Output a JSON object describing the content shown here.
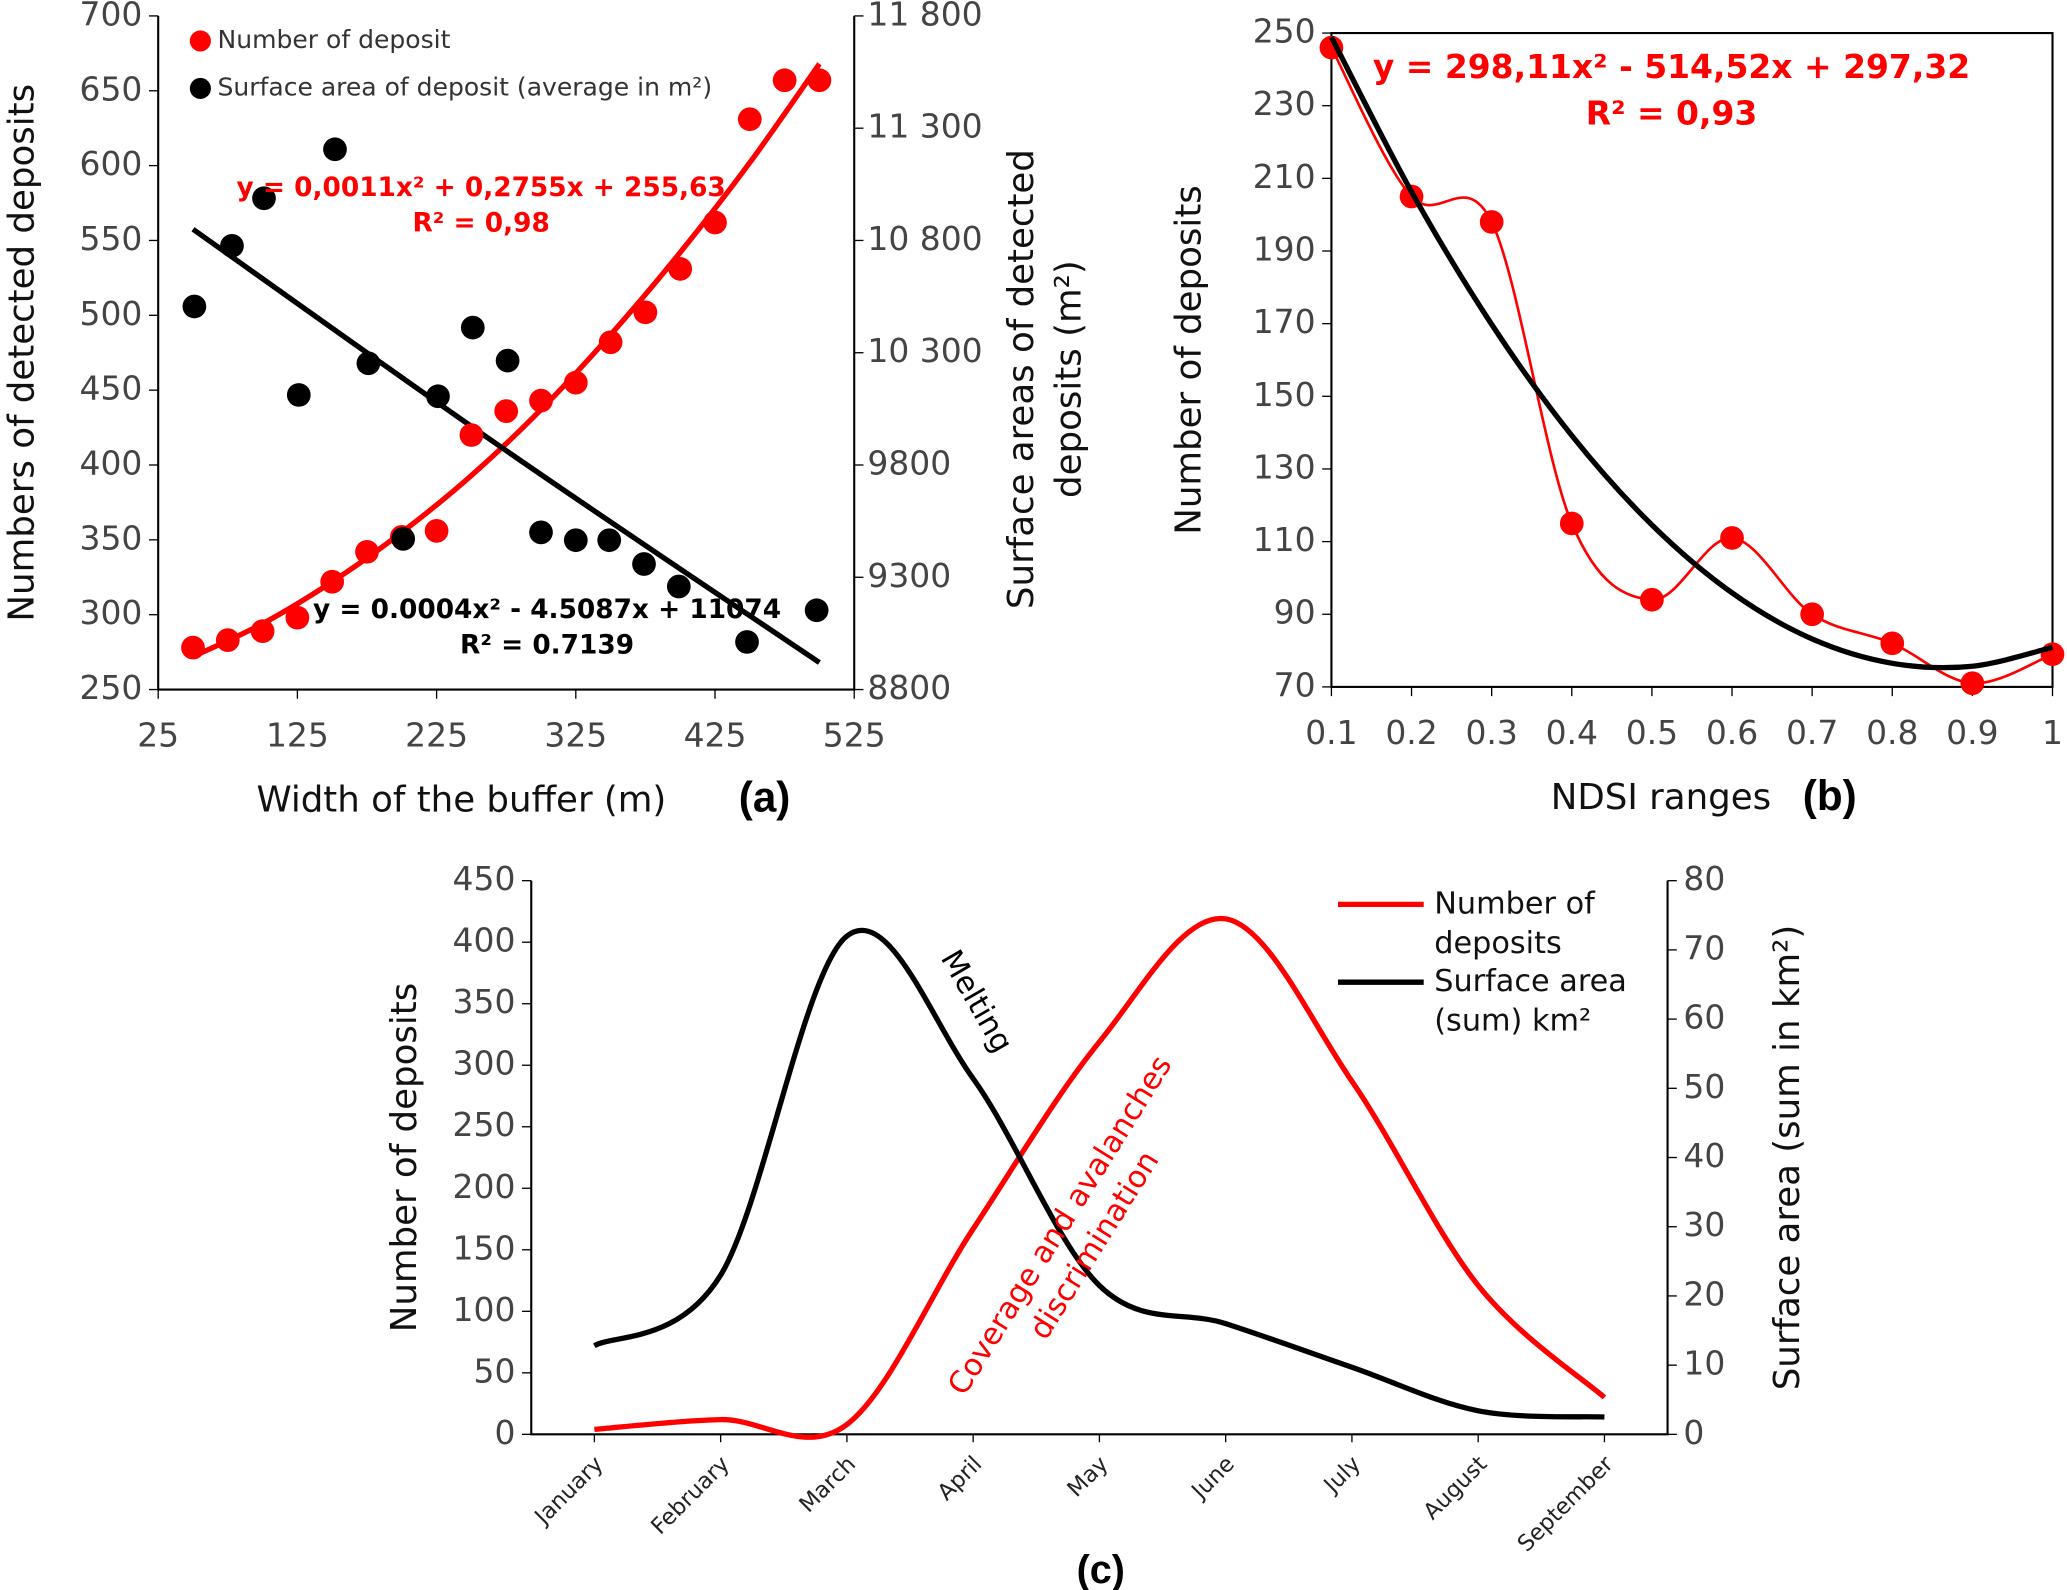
{
  "chart_data": [
    {
      "type": "scatter",
      "panel": "(a)",
      "xlabel": "Width of the buffer (m)",
      "ylabel": "Numbers of detected deposits",
      "y2label": [
        "Surface areas of detected",
        "deposits (m²)"
      ],
      "xlim": [
        25,
        525
      ],
      "xticks": [
        25,
        125,
        225,
        325,
        425,
        525
      ],
      "ylim": [
        250,
        700
      ],
      "yticks": [
        250,
        300,
        350,
        400,
        450,
        500,
        550,
        600,
        650,
        700
      ],
      "y2lim": [
        8800,
        11800
      ],
      "y2ticks": [
        8800,
        9300,
        9800,
        {
          "value": 10300,
          "label": "10 300"
        },
        {
          "value": 10800,
          "label": "10 800"
        },
        {
          "value": 11300,
          "label": "11 300"
        },
        {
          "value": 11800,
          "label": "11 800"
        }
      ],
      "series": [
        {
          "name": "Number of deposit",
          "color": "#ff0000",
          "x": [
            50,
            75,
            100,
            125,
            150,
            175,
            200,
            225,
            250,
            275,
            300,
            325,
            350,
            375,
            400,
            425,
            450,
            475,
            500
          ],
          "values": [
            278,
            283,
            289,
            298,
            322,
            342,
            352,
            356,
            420,
            436,
            443,
            455,
            482,
            502,
            531,
            562,
            631,
            657,
            657
          ]
        },
        {
          "name": "Surface area of deposit (average in m²)",
          "color": "#000000",
          "axis": "y2",
          "x": [
            51,
            78,
            101,
            126,
            152,
            176,
            201,
            226,
            251,
            276,
            300,
            325,
            349,
            374,
            399,
            448,
            498
          ],
          "values": [
            10506,
            10776,
            10988,
            10112,
            11206,
            10253,
            9471,
            10106,
            10412,
            10265,
            9500,
            9465,
            9465,
            9359,
            9259,
            9012,
            9153
          ]
        }
      ],
      "trendlines": [
        {
          "color": "#ff0000",
          "x": [
            50,
            100,
            150,
            200,
            250,
            300,
            350,
            400,
            450,
            500
          ],
          "values": [
            272,
            294,
            322,
            355,
            393,
            437,
            487,
            542,
            602,
            668
          ]
        },
        {
          "color": "#000000",
          "axis": "y2",
          "x": [
            50,
            275,
            500
          ],
          "values": [
            10850,
            9864,
            8920
          ]
        }
      ],
      "equations": [
        {
          "color": "#ff0000",
          "lines": [
            "y = 0,0011x² + 0,2755x + 255,63",
            "R² = 0,98"
          ]
        },
        {
          "color": "#000000",
          "lines": [
            "y = 0.0004x² - 4.5087x + 11074",
            "R² = 0.7139"
          ]
        }
      ]
    },
    {
      "type": "line",
      "panel": "(b)",
      "xlabel": "NDSI ranges",
      "ylabel": "Number of deposits",
      "x": [
        0.1,
        0.2,
        0.3,
        0.4,
        0.5,
        0.6,
        0.7,
        0.8,
        0.9,
        1
      ],
      "xlim": [
        0.1,
        1
      ],
      "xticks": [
        0.1,
        0.2,
        0.3,
        0.4,
        0.5,
        0.6,
        0.7,
        0.8,
        0.9,
        1
      ],
      "ylim": [
        70,
        250
      ],
      "yticks": [
        70,
        90,
        110,
        130,
        150,
        170,
        190,
        210,
        230,
        250
      ],
      "series": [
        {
          "color": "#ff0000",
          "values": [
            246,
            205,
            198,
            115,
            94,
            111,
            90,
            82,
            71,
            79
          ]
        }
      ],
      "fit": {
        "color": "#000000",
        "values": [
          248.9,
          206.3,
          169.8,
          139.2,
          114.6,
          95.9,
          83.2,
          76.5,
          75.7,
          80.9
        ]
      },
      "equations": [
        {
          "color": "#ff0000",
          "lines": [
            "y = 298,11x² - 514,52x + 297,32",
            "R² = 0,93"
          ]
        }
      ]
    },
    {
      "type": "line",
      "panel": "(c)",
      "ylabel": "Number of deposits",
      "y2label": "Surface area (sum in km²)",
      "categories": [
        "January",
        "February",
        "March",
        "April",
        "May",
        "June",
        "July",
        "August",
        "September"
      ],
      "ylim": [
        0,
        450
      ],
      "yticks": [
        0,
        50,
        100,
        150,
        200,
        250,
        300,
        350,
        400,
        450
      ],
      "y2lim": [
        0,
        80
      ],
      "y2ticks": [
        0,
        10,
        20,
        30,
        40,
        50,
        60,
        70,
        80
      ],
      "series": [
        {
          "name": "Number of deposits",
          "color": "#ff0000",
          "values": [
            4,
            12,
            8,
            167,
            319,
            419,
            287,
            121,
            30
          ]
        },
        {
          "name": "Surface area (sum) km²",
          "color": "#000000",
          "axis": "y2",
          "values": [
            12.8,
            23,
            72,
            51.4,
            21.5,
            16,
            9.7,
            3.4,
            2.5
          ]
        }
      ],
      "annotations": [
        {
          "color": "#000000",
          "lines": [
            "Melting"
          ]
        },
        {
          "color": "#ff0000",
          "lines": [
            "Coverage and avalanches",
            "discrimination"
          ]
        }
      ]
    }
  ]
}
